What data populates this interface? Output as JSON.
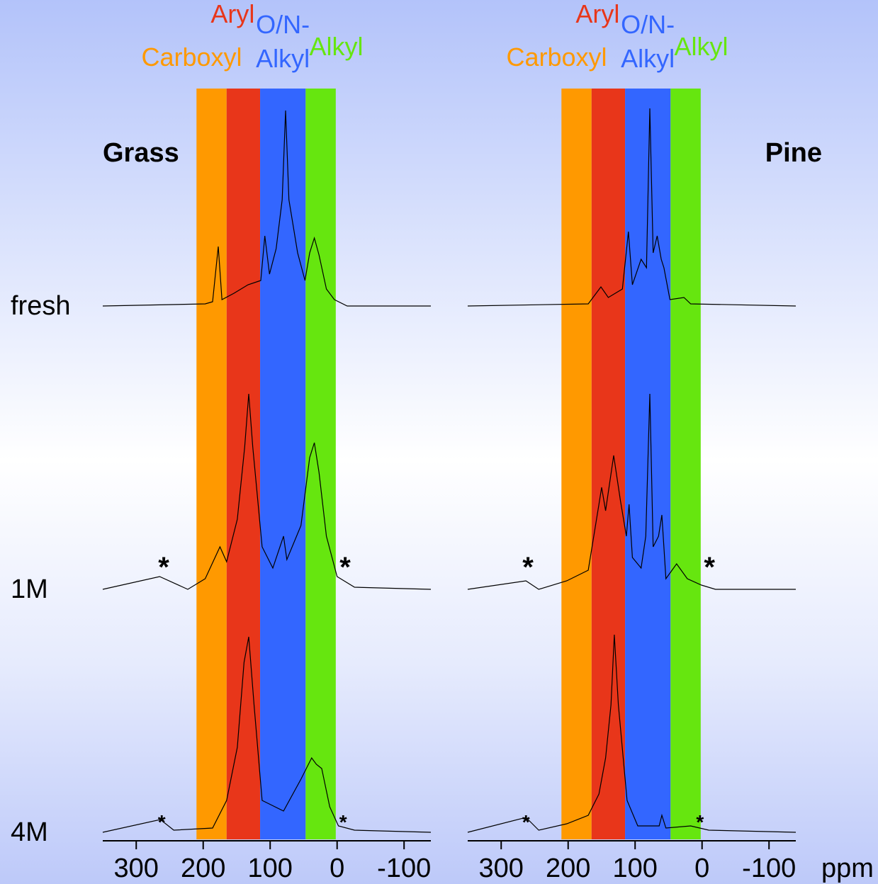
{
  "chart_data": [
    {
      "type": "line",
      "title": "Grass",
      "xlim": [
        350,
        -140
      ],
      "xticks": [
        300,
        200,
        100,
        0,
        -100
      ],
      "regions": [
        {
          "name": [
            "Carboxyl"
          ],
          "color": "#ff9900",
          "range": [
            210,
            165
          ]
        },
        {
          "name": [
            "Aryl"
          ],
          "color": "#e8361a",
          "range": [
            165,
            115
          ]
        },
        {
          "name": [
            "O/N-",
            "Alkyl"
          ],
          "color": "#3366ff",
          "range": [
            115,
            47
          ]
        },
        {
          "name": [
            "Alkyl"
          ],
          "color": "#66e60f",
          "range": [
            47,
            2
          ]
        }
      ],
      "series": [
        {
          "name": "fresh",
          "color": "#000000",
          "x": [
            350,
            197,
            186,
            177.5,
            172,
            154,
            133,
            114,
            108,
            101,
            91,
            82,
            77,
            72,
            59,
            48,
            41,
            34,
            27,
            16,
            4,
            -15,
            -140
          ],
          "values": [
            0,
            1,
            2,
            28,
            3,
            6,
            10,
            12,
            33,
            15,
            27,
            50,
            92,
            50,
            25,
            12,
            25,
            32,
            24,
            8,
            3,
            0,
            0
          ]
        },
        {
          "name": "1M",
          "color": "#000000",
          "x": [
            350,
            265,
            223,
            197,
            175,
            165,
            149,
            138,
            132,
            126,
            112,
            96,
            80,
            75,
            54,
            41,
            34,
            27,
            16,
            0,
            -26,
            -140
          ],
          "values": [
            0,
            6,
            0,
            5,
            20,
            13,
            33,
            67,
            92,
            67,
            20,
            10,
            25,
            14,
            30,
            62,
            69,
            55,
            25,
            6,
            1,
            0
          ]
        },
        {
          "name": "4M",
          "color": "#000000",
          "x": [
            350,
            264,
            244,
            186,
            165,
            149,
            139,
            132,
            124,
            112,
            80,
            54,
            38,
            31,
            23,
            11,
            -2,
            -26,
            -140
          ],
          "values": [
            0,
            6,
            1,
            2,
            15,
            40,
            80,
            92,
            60,
            15,
            10,
            25,
            35,
            32,
            30,
            12,
            3,
            1,
            0
          ]
        }
      ],
      "annotations": [
        {
          "text": "*",
          "series": 1,
          "x": 259
        },
        {
          "text": "*",
          "series": 1,
          "x": -12
        },
        {
          "text": "*",
          "series": 2,
          "x": 262
        },
        {
          "text": "*",
          "series": 2,
          "x": -9
        }
      ]
    },
    {
      "type": "line",
      "title": "Pine",
      "xlim": [
        350,
        -140
      ],
      "xticks": [
        300,
        200,
        100,
        0,
        -100
      ],
      "xlabel": "ppm",
      "regions": [
        {
          "name": [
            "Carboxyl"
          ],
          "color": "#ff9900",
          "range": [
            210,
            165
          ]
        },
        {
          "name": [
            "Aryl"
          ],
          "color": "#e8361a",
          "range": [
            165,
            115
          ]
        },
        {
          "name": [
            "O/N-",
            "Alkyl"
          ],
          "color": "#3366ff",
          "range": [
            115,
            47
          ]
        },
        {
          "name": [
            "Alkyl"
          ],
          "color": "#66e60f",
          "range": [
            47,
            2
          ]
        }
      ],
      "series": [
        {
          "color": "#000000",
          "x": [
            350,
            170,
            151,
            140,
            119,
            110,
            104,
            91,
            83,
            78,
            73,
            67,
            61,
            57,
            48,
            27,
            17,
            -140
          ],
          "values": [
            0,
            1,
            9,
            4,
            8,
            35,
            10,
            22,
            18,
            93,
            25,
            33,
            22,
            18,
            3,
            4,
            1,
            0
          ]
        },
        {
          "color": "#000000",
          "x": [
            350,
            263,
            244,
            202,
            170,
            154,
            150,
            144,
            132,
            122,
            113,
            109,
            104,
            91,
            84,
            78,
            73,
            65,
            60,
            54,
            38,
            22,
            1,
            -20,
            -140
          ],
          "values": [
            0,
            4,
            0,
            4,
            9,
            40,
            48,
            37,
            63,
            42,
            25,
            40,
            15,
            10,
            25,
            92,
            20,
            25,
            35,
            5,
            12,
            5,
            2,
            0,
            0
          ]
        },
        {
          "color": "#000000",
          "x": [
            350,
            263,
            244,
            202,
            170,
            154,
            144,
            136,
            131,
            125,
            112,
            96,
            64,
            60,
            54,
            17,
            -10,
            -140
          ],
          "values": [
            0,
            7,
            1,
            4,
            8,
            18,
            35,
            60,
            93,
            60,
            15,
            3,
            3,
            8,
            2,
            3,
            1,
            0
          ]
        }
      ],
      "annotations": [
        {
          "text": "*",
          "series": 1,
          "x": 260
        },
        {
          "text": "*",
          "series": 1,
          "x": -11
        },
        {
          "text": "*",
          "series": 2,
          "x": 263
        },
        {
          "text": "*",
          "series": 2,
          "x": 3
        }
      ]
    }
  ]
}
